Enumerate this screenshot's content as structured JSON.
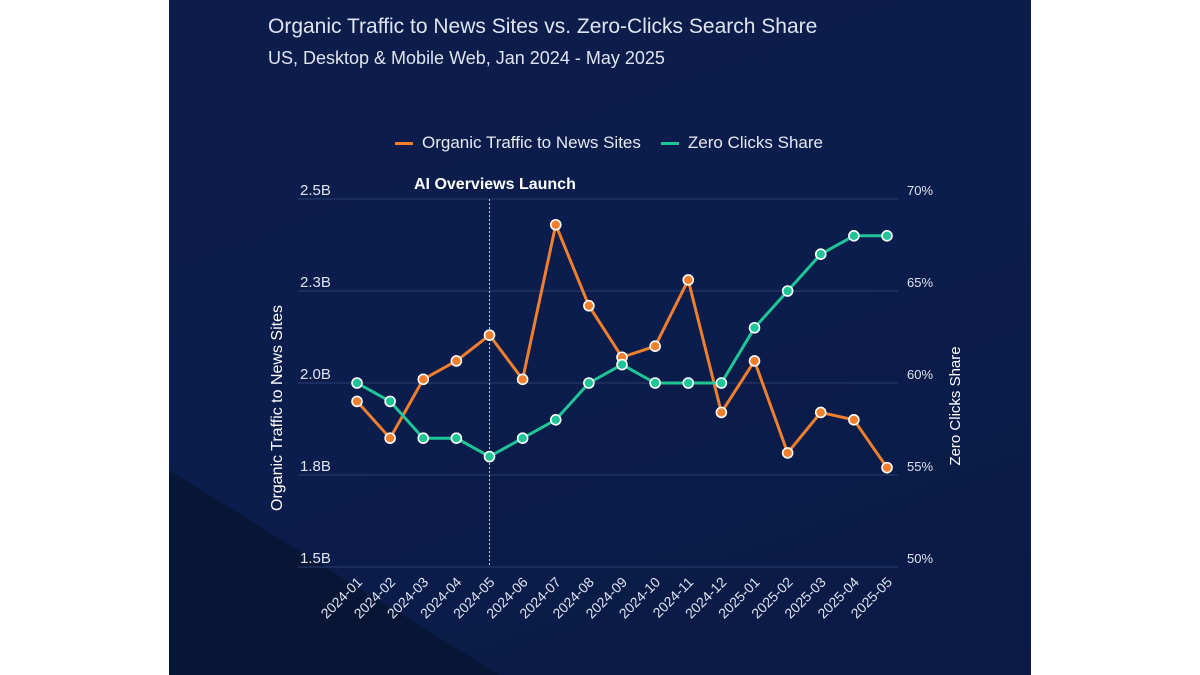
{
  "chart_data": {
    "type": "line",
    "title": "Organic Traffic to News Sites vs. Zero-Clicks Search Share",
    "subtitle": "US, Desktop & Mobile Web, Jan 2024 - May 2025",
    "categories": [
      "2024-01",
      "2024-02",
      "2024-03",
      "2024-04",
      "2024-05",
      "2024-06",
      "2024-07",
      "2024-08",
      "2024-09",
      "2024-10",
      "2024-11",
      "2024-12",
      "2025-01",
      "2025-02",
      "2025-03",
      "2025-04",
      "2025-05"
    ],
    "series": [
      {
        "name": "Organic Traffic to News Sites",
        "axis": "left",
        "color": "#f07f2e",
        "values": [
          1.95,
          1.85,
          2.01,
          2.06,
          2.13,
          2.01,
          2.43,
          2.21,
          2.07,
          2.1,
          2.28,
          1.92,
          2.06,
          1.81,
          1.92,
          1.9,
          1.77
        ]
      },
      {
        "name": "Zero Clicks Share",
        "axis": "right",
        "color": "#1fc497",
        "values": [
          60,
          59,
          57,
          57,
          56,
          57,
          58,
          60,
          61,
          60,
          60,
          60,
          63,
          65,
          67,
          68,
          68
        ]
      }
    ],
    "y_left": {
      "label": "Organic Traffic to News Sites",
      "range": [
        1.5,
        2.5
      ],
      "unit": "B",
      "ticks": [
        1.5,
        1.75,
        2.0,
        2.25,
        2.5
      ],
      "tick_labels": [
        "1.5B",
        "1.8B",
        "2.0B",
        "2.3B",
        "2.5B"
      ]
    },
    "y_right": {
      "label": "Zero Clicks Share",
      "range": [
        50,
        70
      ],
      "unit": "%",
      "ticks": [
        50,
        55,
        60,
        65,
        70
      ],
      "tick_labels": [
        "50%",
        "55%",
        "60%",
        "65%",
        "70%"
      ]
    },
    "annotation": {
      "label": "AI Overviews Launch",
      "x": "2024-05"
    },
    "grid": true,
    "legend_placement": "top-center",
    "background_color": "#0c1d4b"
  }
}
